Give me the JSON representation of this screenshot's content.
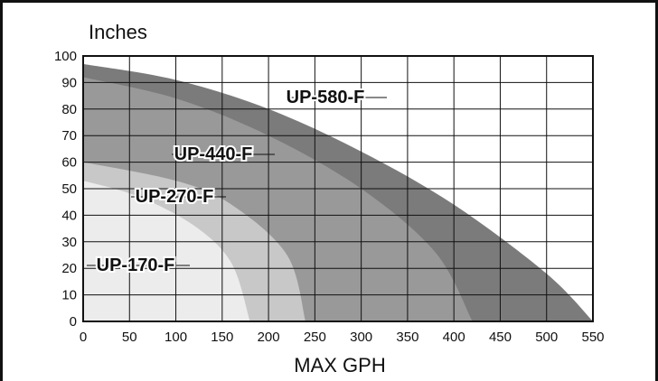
{
  "chart_data": {
    "type": "area",
    "ylabel": "Inches",
    "xlabel": "MAX GPH",
    "xlim": [
      0,
      550
    ],
    "ylim": [
      0,
      100
    ],
    "x_ticks": [
      0,
      50,
      100,
      150,
      200,
      250,
      300,
      350,
      400,
      450,
      500,
      550
    ],
    "y_ticks": [
      0,
      10,
      20,
      30,
      40,
      50,
      60,
      70,
      80,
      90,
      100
    ],
    "grid": true,
    "series": [
      {
        "name": "UP-580-F",
        "color": "#7b7b7b",
        "points": [
          [
            0,
            97
          ],
          [
            100,
            91
          ],
          [
            200,
            80
          ],
          [
            300,
            64
          ],
          [
            400,
            44
          ],
          [
            500,
            18
          ],
          [
            550,
            0
          ]
        ]
      },
      {
        "name": "UP-440-F",
        "color": "#999999",
        "points": [
          [
            0,
            92
          ],
          [
            100,
            84
          ],
          [
            200,
            70
          ],
          [
            300,
            50
          ],
          [
            380,
            26
          ],
          [
            420,
            0
          ]
        ]
      },
      {
        "name": "UP-270-F",
        "color": "#c8c8c8",
        "points": [
          [
            0,
            60
          ],
          [
            100,
            53
          ],
          [
            160,
            44
          ],
          [
            220,
            25
          ],
          [
            240,
            0
          ]
        ]
      },
      {
        "name": "UP-170-F",
        "color": "#ececec",
        "points": [
          [
            0,
            53
          ],
          [
            60,
            47
          ],
          [
            120,
            36
          ],
          [
            160,
            22
          ],
          [
            180,
            0
          ]
        ]
      }
    ]
  }
}
